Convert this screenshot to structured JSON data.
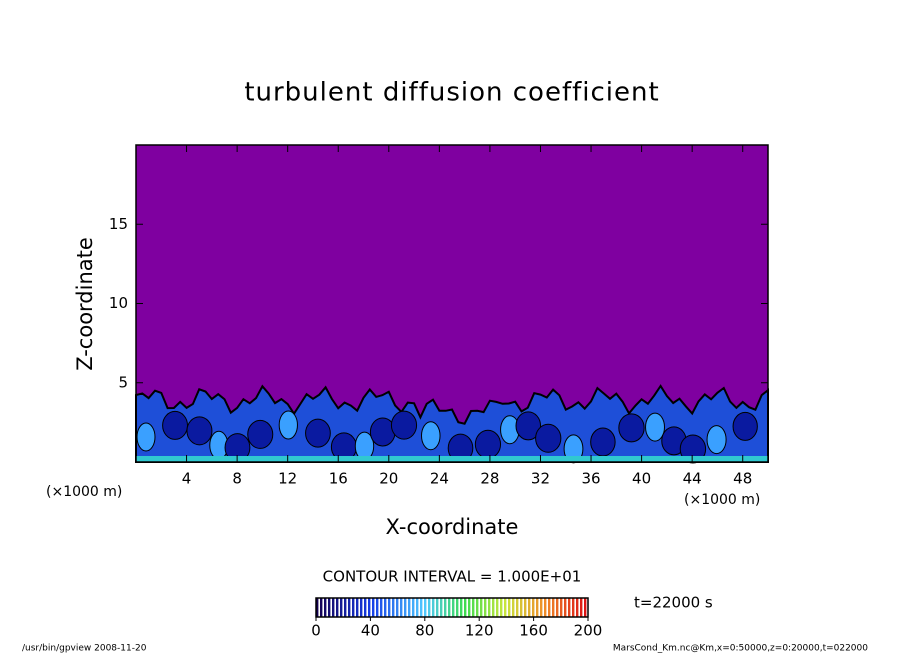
{
  "chart_data": {
    "type": "contour",
    "title": "turbulent diffusion coefficient",
    "xlabel": "X-coordinate",
    "ylabel": "Z-coordinate",
    "axis_unit": "(×1000 m)",
    "xlim": [
      0,
      50
    ],
    "xticks": [
      4,
      8,
      12,
      16,
      20,
      24,
      28,
      32,
      36,
      40,
      44,
      48
    ],
    "ylim": [
      0,
      20
    ],
    "yticks": [
      5,
      10,
      15
    ],
    "background_color": "#7f00a0",
    "contour_interval": "CONTOUR INTERVAL = 1.000E+01",
    "colorbar_lim": [
      0,
      200
    ],
    "colorbar_ticks": [
      0,
      40,
      80,
      120,
      160,
      200
    ],
    "time_label": "t=22000 s",
    "footer_left": "/usr/bin/gpview   2008-11-20",
    "footer_right": "MarsCond_Km.nc@Km,x=0:50000,z=0:20000,t=022000"
  }
}
